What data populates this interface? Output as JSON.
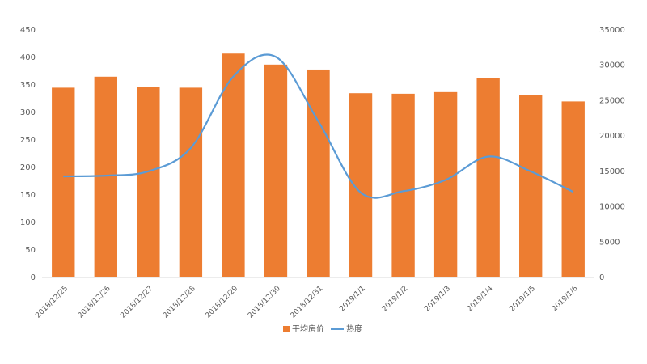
{
  "chart_data": {
    "type": "bar-line",
    "categories": [
      "2018/12/25",
      "2018/12/26",
      "2018/12/27",
      "2018/12/28",
      "2018/12/29",
      "2018/12/30",
      "2018/12/31",
      "2019/1/1",
      "2019/1/2",
      "2019/1/3",
      "2019/1/4",
      "2019/1/5",
      "2019/1/6"
    ],
    "series": [
      {
        "name": "平均房价",
        "type": "bar",
        "color": "#ed7d31",
        "values": [
          345,
          365,
          346,
          345,
          407,
          387,
          378,
          335,
          334,
          337,
          363,
          332,
          320
        ]
      },
      {
        "name": "热度",
        "type": "line",
        "axis": "y2",
        "smooth": true,
        "color": "#5b9bd5",
        "values": [
          14300,
          14400,
          15000,
          18300,
          28400,
          31200,
          22100,
          12000,
          12200,
          13800,
          17100,
          15000,
          12100
        ]
      }
    ],
    "ylim": [
      0,
      450
    ],
    "yticks": [
      0,
      50,
      100,
      150,
      200,
      250,
      300,
      350,
      400,
      450
    ],
    "y2lim": [
      0,
      35000
    ],
    "y2ticks": [
      0,
      5000,
      10000,
      15000,
      20000,
      25000,
      30000,
      35000
    ],
    "grid": false,
    "legend": "bottom"
  }
}
